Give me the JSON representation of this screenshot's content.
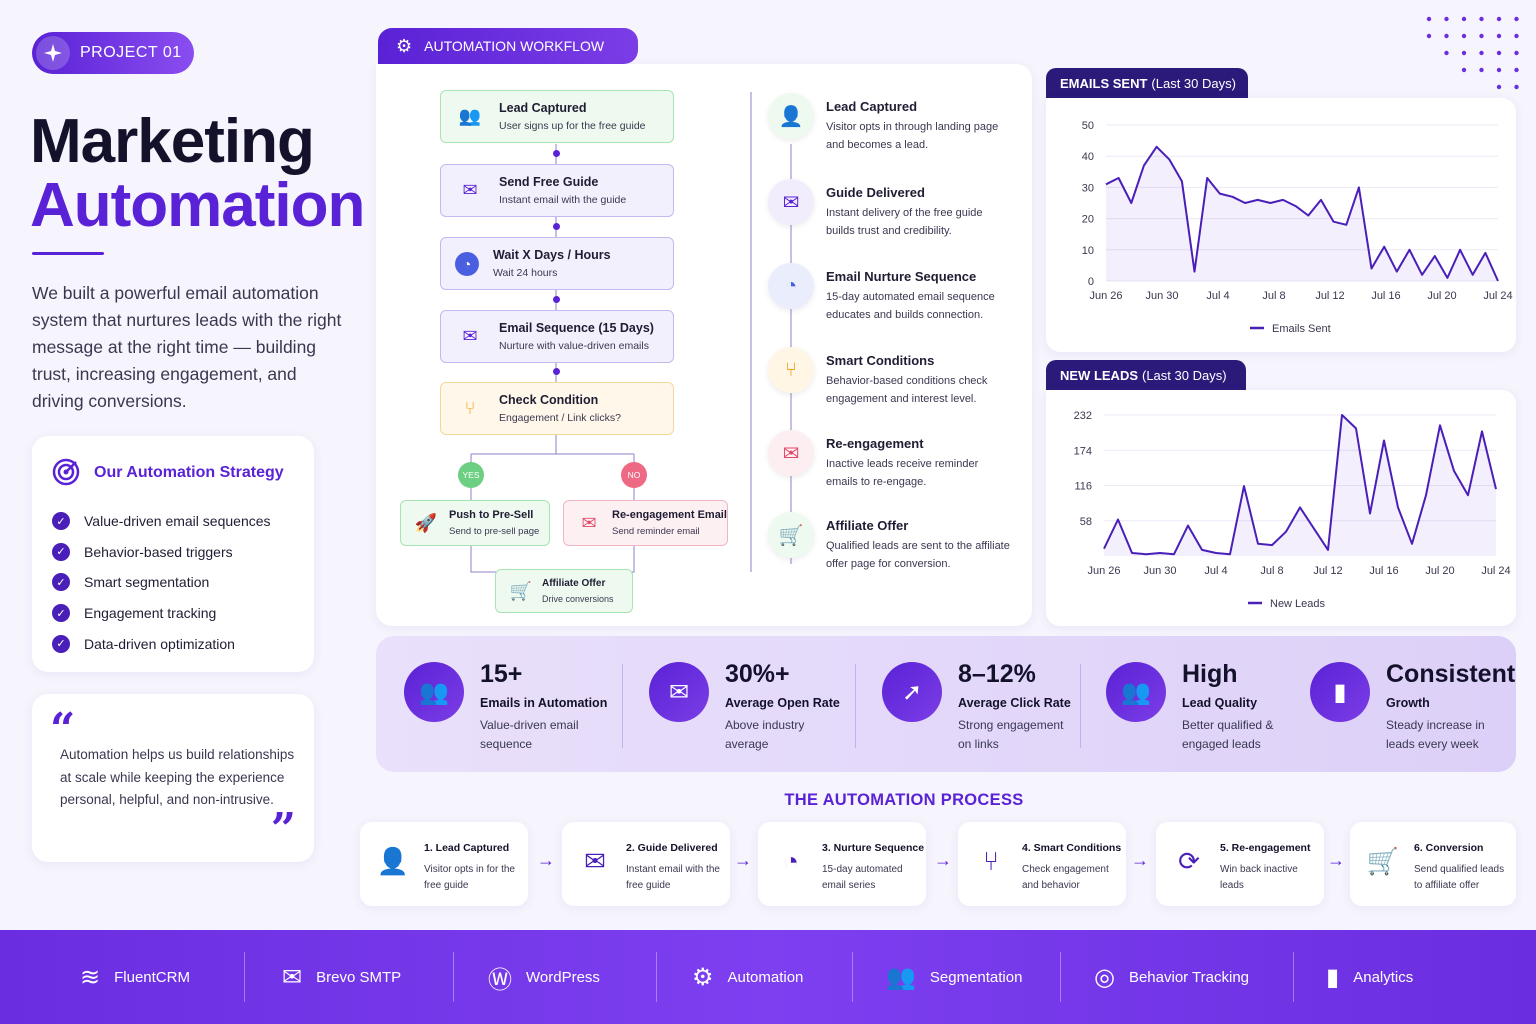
{
  "header": {
    "badge": "PROJECT 01",
    "title_line1": "Marketing",
    "title_line2": "Automation",
    "intro": "We built a powerful email automation system that nurtures leads with the right message at the right time — building trust, increasing engagement, and driving conversions."
  },
  "strategy": {
    "title": "Our Automation Strategy",
    "items": [
      "Value-driven email sequences",
      "Behavior-based triggers",
      "Smart segmentation",
      "Engagement tracking",
      "Data-driven optimization"
    ]
  },
  "quote": {
    "text": "Automation helps us build relationships at scale while keeping the experience personal, helpful, and non-intrusive."
  },
  "workflow": {
    "tab": "AUTOMATION WORKFLOW",
    "nodes": [
      {
        "title": "Lead Captured",
        "sub": "User signs up for the free guide"
      },
      {
        "title": "Send Free Guide",
        "sub": "Instant email with the guide"
      },
      {
        "title": "Wait X Days / Hours",
        "sub": "Wait 24 hours"
      },
      {
        "title": "Email Sequence (15 Days)",
        "sub": "Nurture with value-driven emails"
      },
      {
        "title": "Check Condition",
        "sub": "Engagement / Link clicks?"
      }
    ],
    "yes": "YES",
    "no": "NO",
    "presell": {
      "title": "Push to Pre-Sell",
      "sub": "Send to pre-sell page"
    },
    "reengage": {
      "title": "Re-engagement Email",
      "sub": "Send reminder email"
    },
    "affiliate": {
      "title": "Affiliate Offer",
      "sub": "Drive conversions"
    }
  },
  "timeline": [
    {
      "title": "Lead Captured",
      "sub": "Visitor opts in through landing page and becomes a lead."
    },
    {
      "title": "Guide Delivered",
      "sub": "Instant delivery of the free guide builds trust and credibility."
    },
    {
      "title": "Email Nurture Sequence",
      "sub": "15-day automated email sequence educates and builds connection."
    },
    {
      "title": "Smart Conditions",
      "sub": "Behavior-based conditions check engagement and interest level."
    },
    {
      "title": "Re-engagement",
      "sub": "Inactive leads receive reminder emails to re-engage."
    },
    {
      "title": "Affiliate Offer",
      "sub": "Qualified leads are sent to the affiliate offer page for conversion."
    }
  ],
  "chart_data": [
    {
      "type": "line",
      "title_bold": "EMAILS SENT",
      "title_rest": "(Last 30 Days)",
      "ylim": [
        0,
        50
      ],
      "yticks": [
        "50",
        "40",
        "30",
        "20",
        "10",
        "0"
      ],
      "xticks": [
        "Jun 26",
        "Jun 30",
        "Jul 4",
        "Jul 8",
        "Jul 12",
        "Jul 16",
        "Jul 20",
        "Jul 24"
      ],
      "series": [
        {
          "name": "Emails Sent",
          "values": [
            31,
            33,
            25,
            37,
            43,
            39,
            32,
            3,
            33,
            28,
            27,
            25,
            26,
            25,
            26,
            24,
            21,
            26,
            19,
            18,
            30,
            4,
            11,
            3,
            10,
            2,
            8,
            1,
            10,
            2,
            9,
            0
          ]
        }
      ],
      "grid": true,
      "legend": "bottom"
    },
    {
      "type": "line",
      "title_bold": "NEW LEADS",
      "title_rest": "(Last 30 Days)",
      "ylim": [
        0,
        232
      ],
      "yticks": [
        "232",
        "174",
        "116",
        "58"
      ],
      "xticks": [
        "Jun 26",
        "Jun 30",
        "Jul 4",
        "Jul 8",
        "Jul 12",
        "Jul 16",
        "Jul 20",
        "Jul 24"
      ],
      "series": [
        {
          "name": "New Leads",
          "values": [
            12,
            60,
            5,
            3,
            5,
            3,
            50,
            10,
            5,
            3,
            115,
            20,
            18,
            40,
            80,
            45,
            10,
            232,
            210,
            70,
            190,
            80,
            20,
            100,
            215,
            140,
            100,
            205,
            110
          ]
        }
      ],
      "grid": true,
      "legend": "bottom"
    }
  ],
  "stats": [
    {
      "value": "15+",
      "label": "Emails in Automation",
      "desc": "Value-driven email sequence"
    },
    {
      "value": "30%+",
      "label": "Average Open Rate",
      "desc": "Above industry average"
    },
    {
      "value": "8–12%",
      "label": "Average Click Rate",
      "desc": "Strong engagement on links"
    },
    {
      "value": "High",
      "label": "Lead Quality",
      "desc": "Better qualified & engaged leads"
    },
    {
      "value": "Consistent",
      "label": "Growth",
      "desc": "Steady increase in leads every week"
    }
  ],
  "process": {
    "title": "THE AUTOMATION PROCESS",
    "steps": [
      {
        "title": "1. Lead Captured",
        "sub": "Visitor opts in for the free guide"
      },
      {
        "title": "2. Guide Delivered",
        "sub": "Instant email with the free guide"
      },
      {
        "title": "3. Nurture Sequence",
        "sub": "15-day automated email series"
      },
      {
        "title": "4. Smart Conditions",
        "sub": "Check engagement and behavior"
      },
      {
        "title": "5. Re-engagement",
        "sub": "Win back inactive leads"
      },
      {
        "title": "6. Conversion",
        "sub": "Send qualified leads to affiliate offer"
      }
    ]
  },
  "footer": [
    "FluentCRM",
    "Brevo SMTP",
    "WordPress",
    "Automation",
    "Segmentation",
    "Behavior Tracking",
    "Analytics"
  ],
  "colors": {
    "accent": "#5a22d6",
    "dark_tab": "#2b1a7a",
    "green": "#2e9b45",
    "yellow": "#f0a21c",
    "red": "#e24a6a"
  }
}
